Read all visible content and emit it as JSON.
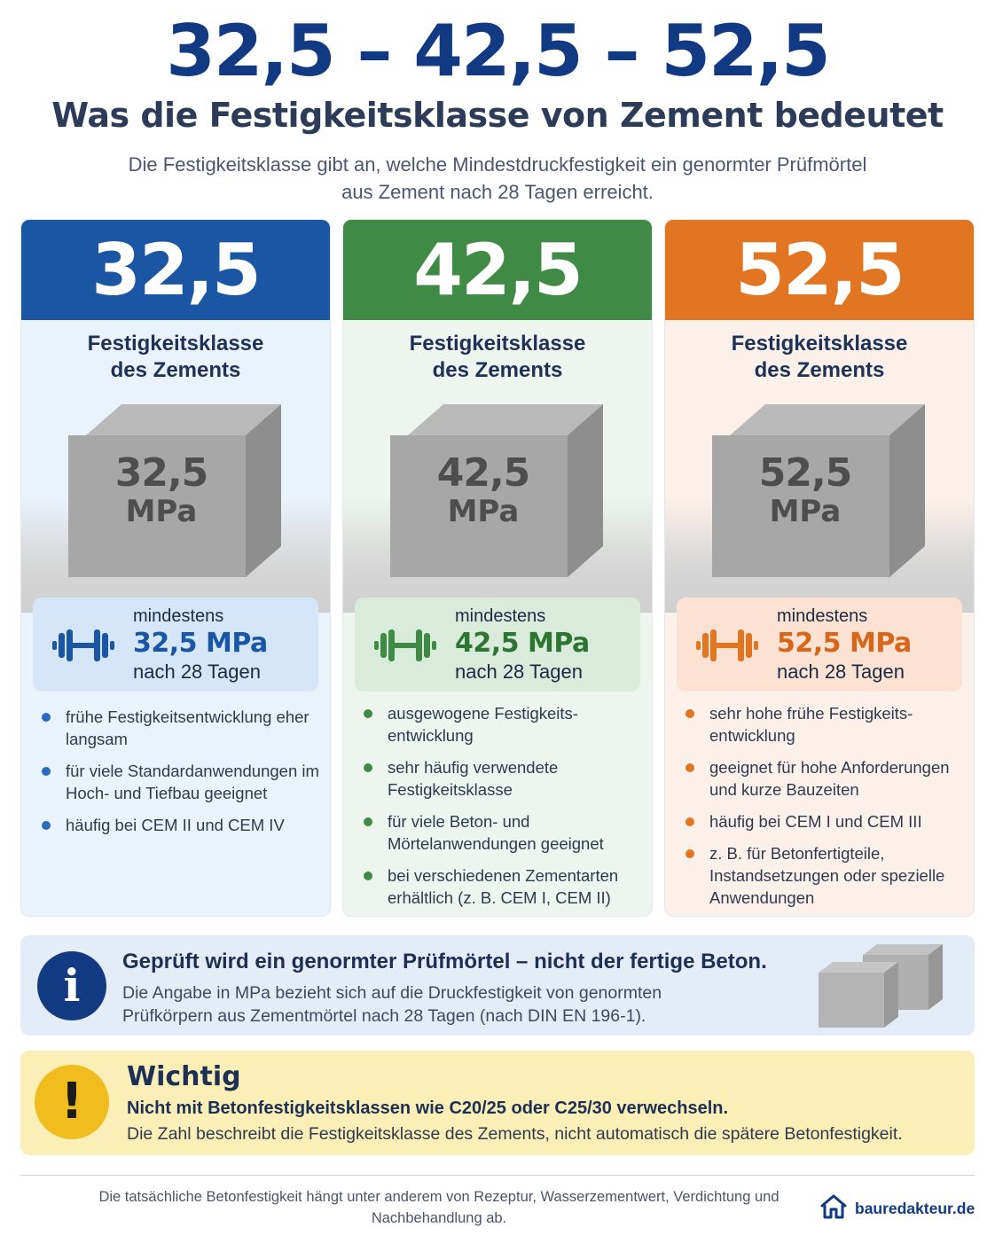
{
  "header": {
    "title": "32,5 – 42,5 – 52,5",
    "subtitle": "Was die Festigkeitsklasse von Zement bedeutet",
    "intro": "Die Festigkeitsklasse gibt an, welche Mindestdruckfestigkeit ein genormter Prüfmörtel aus Zement nach 28 Tagen erreicht."
  },
  "cards": [
    {
      "value": "32,5",
      "label_line1": "Festigkeitsklasse",
      "label_line2": "des Zements",
      "cube_value": "32,5",
      "cube_unit": "MPa",
      "min_label": "mindestens",
      "min_value": "32,5 MPa",
      "min_after": "nach 28 Tagen",
      "bullets": [
        "frühe Festigkeitsentwicklung eher langsam",
        "für viele Standardanwendungen im Hoch- und Tiefbau geeignet",
        "häufig bei CEM II und CEM IV"
      ],
      "color": "#1a56a3"
    },
    {
      "value": "42,5",
      "label_line1": "Festigkeitsklasse",
      "label_line2": "des Zements",
      "cube_value": "42,5",
      "cube_unit": "MPa",
      "min_label": "mindestens",
      "min_value": "42,5 MPa",
      "min_after": "nach 28 Tagen",
      "bullets": [
        "ausgewogene Festigkeits-entwicklung",
        "sehr häufig verwendete Festigkeitsklasse",
        "für viele Beton- und Mörtelanwendungen geeignet",
        "bei verschiedenen Zementarten erhältlich (z. B. CEM I, CEM II)"
      ],
      "color": "#3f8a45"
    },
    {
      "value": "52,5",
      "label_line1": "Festigkeitsklasse",
      "label_line2": "des Zements",
      "cube_value": "52,5",
      "cube_unit": "MPa",
      "min_label": "mindestens",
      "min_value": "52,5 MPa",
      "min_after": "nach 28 Tagen",
      "bullets": [
        "sehr hohe frühe Festigkeits-entwicklung",
        "geeignet für hohe Anforderungen und kurze Bauzeiten",
        "häufig bei CEM I und CEM III",
        "z. B. für Betonfertigteile, Instandsetzungen oder spezielle Anwendungen"
      ],
      "color": "#e27521"
    }
  ],
  "info": {
    "icon": "info-icon",
    "heading": "Geprüft wird ein genormter Prüfmörtel – nicht der fertige Beton.",
    "text": "Die Angabe in MPa bezieht sich auf die Druckfestigkeit von genormten Prüfkörpern aus Zementmörtel nach 28 Tagen (nach DIN EN 196-1)."
  },
  "warning": {
    "icon": "exclamation-icon",
    "heading": "Wichtig",
    "bold": "Nicht mit Betonfestigkeitsklassen wie C20/25 oder C25/30 verwechseln.",
    "text": "Die Zahl beschreibt die Festigkeitsklasse des Zements, nicht automatisch die spätere Betonfestigkeit."
  },
  "footer": {
    "note": "Die tatsächliche Betonfestigkeit hängt unter anderem von Rezeptur, Wasserzementwert, Verdichtung und Nachbehandlung ab.",
    "brand": "bauredakteur.de"
  }
}
